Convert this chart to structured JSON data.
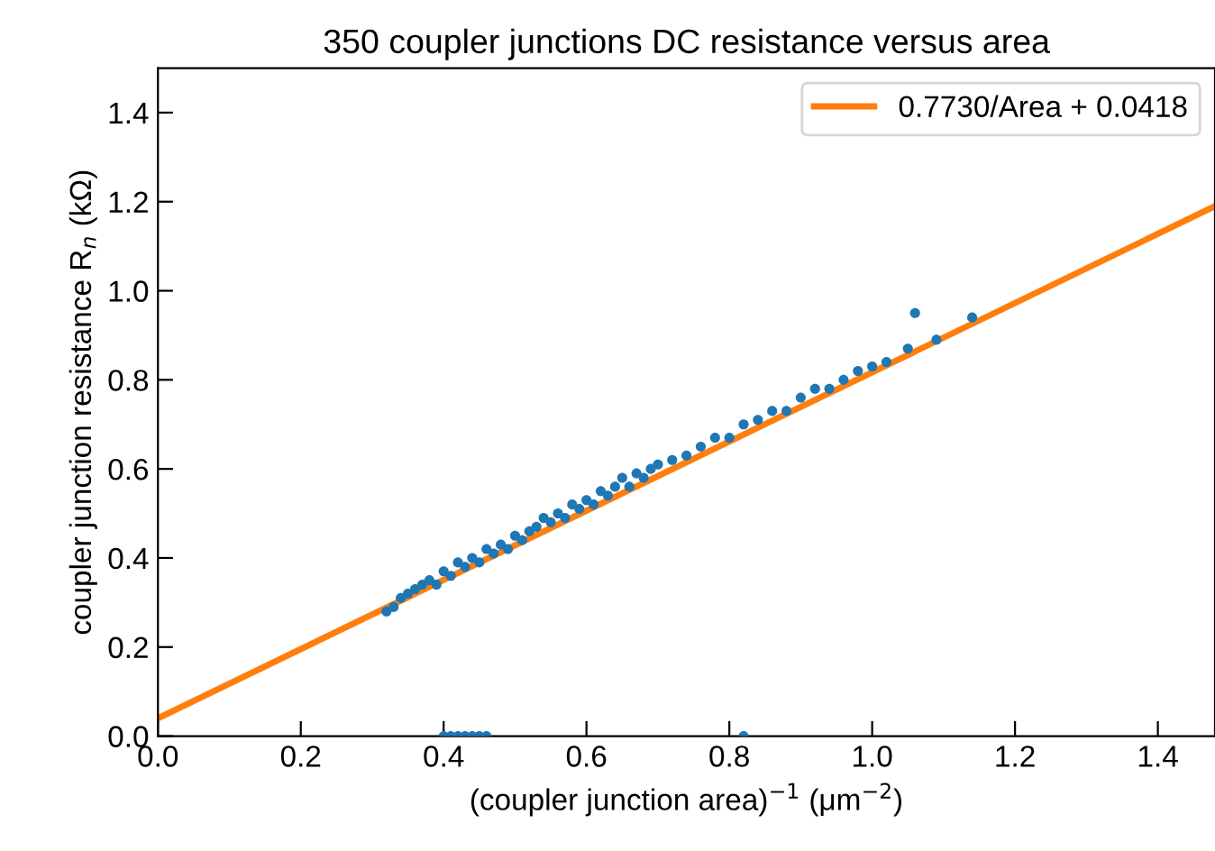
{
  "chart_data": {
    "type": "scatter",
    "title": "350 coupler junctions DC resistance versus area",
    "xlabel": "(coupler junction area)$^{−1}$ (μm$^{−2}$)",
    "ylabel": "coupler junction resistance R$_{n}$ (kΩ)",
    "xlim": [
      0,
      1.48
    ],
    "ylim": [
      0,
      1.5
    ],
    "xticks": [
      {
        "value": 0,
        "label": "0.0"
      },
      0.2,
      0.4,
      0.6,
      0.8,
      {
        "value": 1,
        "label": "1.0"
      },
      1.2,
      1.4
    ],
    "yticks": [
      {
        "value": 0,
        "label": "0.0"
      },
      0.2,
      0.4,
      0.6,
      0.8,
      {
        "value": 1,
        "label": "1.0"
      },
      1.2,
      1.4
    ],
    "grid": false,
    "legend": "top right",
    "series": [
      {
        "color": "#1f77b4",
        "marker": "circle",
        "x": [
          0.32,
          0.33,
          0.34,
          0.35,
          0.36,
          0.37,
          0.38,
          0.39,
          0.4,
          0.41,
          0.42,
          0.43,
          0.44,
          0.45,
          0.46,
          0.47,
          0.48,
          0.49,
          0.5,
          0.51,
          0.52,
          0.53,
          0.54,
          0.55,
          0.56,
          0.57,
          0.58,
          0.59,
          0.6,
          0.61,
          0.62,
          0.63,
          0.64,
          0.65,
          0.66,
          0.67,
          0.68,
          0.69,
          0.7,
          0.72,
          0.74,
          0.76,
          0.78,
          0.8,
          0.82,
          0.84,
          0.86,
          0.88,
          0.9,
          0.92,
          0.94,
          0.96,
          0.98,
          1.0,
          1.02,
          1.05,
          1.06,
          1.09,
          1.14,
          0.4,
          0.41,
          0.42,
          0.43,
          0.44,
          0.45,
          0.46,
          0.82
        ],
        "values": [
          0.28,
          0.29,
          0.31,
          0.32,
          0.33,
          0.34,
          0.35,
          0.34,
          0.37,
          0.36,
          0.39,
          0.38,
          0.4,
          0.39,
          0.42,
          0.41,
          0.43,
          0.42,
          0.45,
          0.44,
          0.46,
          0.47,
          0.49,
          0.48,
          0.5,
          0.49,
          0.52,
          0.51,
          0.53,
          0.52,
          0.55,
          0.54,
          0.56,
          0.58,
          0.56,
          0.59,
          0.58,
          0.6,
          0.61,
          0.62,
          0.63,
          0.65,
          0.67,
          0.67,
          0.7,
          0.71,
          0.73,
          0.73,
          0.76,
          0.78,
          0.78,
          0.8,
          0.82,
          0.83,
          0.84,
          0.87,
          0.95,
          0.89,
          0.94,
          0,
          0,
          0,
          0,
          0,
          0,
          0,
          0
        ]
      },
      {
        "type": "line",
        "name": "0.7730/Area + 0.0418",
        "color": "#ff7f0e",
        "marker": "none",
        "line_style": "solid",
        "x": [
          0,
          1.48
        ],
        "values": [
          0.04,
          1.19
        ]
      }
    ]
  }
}
